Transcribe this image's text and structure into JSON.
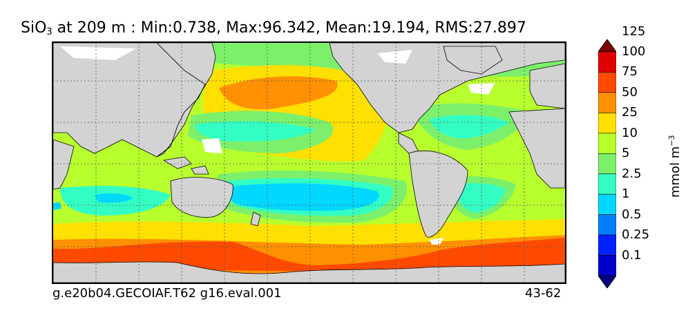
{
  "title": {
    "species_main": "SiO",
    "species_sub": "3",
    "rest": " at 209 m : Min:0.738, Max:96.342, Mean:19.194, RMS:27.897"
  },
  "footer": {
    "case_name": "g.e20b04.GECOIAF.T62 g16.eval.001",
    "years": "43-62"
  },
  "colorbar": {
    "units_main": "mmol m",
    "units_sup": "−3",
    "labels": [
      "0.1",
      "0.25",
      "0.5",
      "1",
      "2.5",
      "5",
      "10",
      "25",
      "50",
      "75",
      "100",
      "125"
    ],
    "colors": [
      "#000080",
      "#0000cd",
      "#0020ff",
      "#0080ff",
      "#00d8ff",
      "#33ffc4",
      "#7cf06a",
      "#b8ff2e",
      "#ffe000",
      "#ff9000",
      "#ff4a00",
      "#e00000",
      "#800000"
    ]
  },
  "map": {
    "land_color": "#d3d3d3",
    "ice_color": "#ffffff"
  }
}
